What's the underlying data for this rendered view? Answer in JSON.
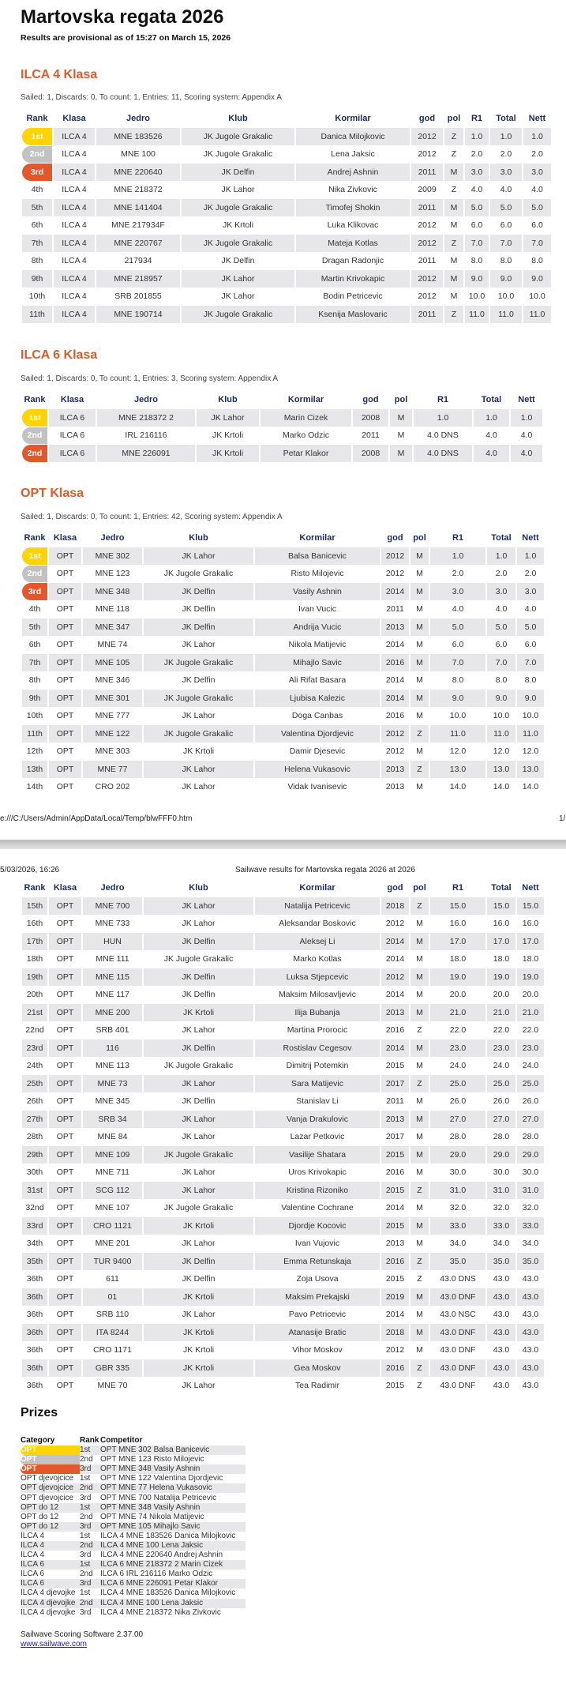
{
  "title": "Martovska regata 2026",
  "provisional": "Results are provisional as of 15:27 on March 15, 2026",
  "columns": [
    "Rank",
    "Klasa",
    "Jedro",
    "Klub",
    "Kormilar",
    "god",
    "pol",
    "R1",
    "Total",
    "Nett"
  ],
  "colors": {
    "accent": "#e05a2b",
    "header": "#1b2b5e",
    "gold": "#ffd400",
    "silver": "#c2c2c2",
    "bronze": "#e4572a",
    "row_shade": "#e7e7e9"
  },
  "ilca4": {
    "heading": "ILCA 4 Klasa",
    "sailed": "Sailed: 1, Discards: 0, To count: 1, Entries: 11, Scoring system: Appendix A",
    "rows": [
      [
        "1st",
        "ILCA 4",
        "MNE 183526",
        "JK Jugole Grakalic",
        "Danica Milojkovic",
        "2012",
        "Z",
        "1.0",
        "1.0",
        "1.0"
      ],
      [
        "2nd",
        "ILCA 4",
        "MNE 100",
        "JK Jugole Grakalic",
        "Lena Jaksic",
        "2012",
        "Z",
        "2.0",
        "2.0",
        "2.0"
      ],
      [
        "3rd",
        "ILCA 4",
        "MNE 220640",
        "JK Delfin",
        "Andrej Ashnin",
        "2011",
        "M",
        "3.0",
        "3.0",
        "3.0"
      ],
      [
        "4th",
        "ILCA 4",
        "MNE 218372",
        "JK Lahor",
        "Nika Zivkovic",
        "2009",
        "Z",
        "4.0",
        "4.0",
        "4.0"
      ],
      [
        "5th",
        "ILCA 4",
        "MNE 141404",
        "JK Jugole Grakalic",
        "Timofej Shokin",
        "2011",
        "M",
        "5.0",
        "5.0",
        "5.0"
      ],
      [
        "6th",
        "ILCA 4",
        "MNE 217934F",
        "JK Krtoli",
        "Luka Klikovac",
        "2012",
        "M",
        "6.0",
        "6.0",
        "6.0"
      ],
      [
        "7th",
        "ILCA 4",
        "MNE 220767",
        "JK Jugole Grakalic",
        "Mateja Kotlas",
        "2012",
        "Z",
        "7.0",
        "7.0",
        "7.0"
      ],
      [
        "8th",
        "ILCA 4",
        "217934",
        "JK Delfin",
        "Dragan Radonjic",
        "2011",
        "M",
        "8.0",
        "8.0",
        "8.0"
      ],
      [
        "9th",
        "ILCA 4",
        "MNE 218957",
        "JK Lahor",
        "Martin Krivokapic",
        "2012",
        "M",
        "9.0",
        "9.0",
        "9.0"
      ],
      [
        "10th",
        "ILCA 4",
        "SRB 201855",
        "JK Lahor",
        "Bodin Petricevic",
        "2012",
        "M",
        "10.0",
        "10.0",
        "10.0"
      ],
      [
        "11th",
        "ILCA 4",
        "MNE 190714",
        "JK Jugole Grakalic",
        "Ksenija Maslovaric",
        "2011",
        "Z",
        "11.0",
        "11.0",
        "11.0"
      ]
    ]
  },
  "ilca6": {
    "heading": "ILCA 6 Klasa",
    "sailed": "Sailed: 1, Discards: 0, To count: 1, Entries: 3, Scoring system: Appendix A",
    "rows": [
      [
        "1st",
        "ILCA 6",
        "MNE 218372 2",
        "JK Lahor",
        "Marin Cizek",
        "2008",
        "M",
        "1.0",
        "1.0",
        "1.0"
      ],
      [
        "2nd",
        "ILCA 6",
        "IRL 216116",
        "JK Krtoli",
        "Marko Odzic",
        "2011",
        "M",
        "4.0 DNS",
        "4.0",
        "4.0"
      ],
      [
        "2nd",
        "ILCA 6",
        "MNE 226091",
        "JK Krtoli",
        "Petar Klakor",
        "2008",
        "M",
        "4.0 DNS",
        "4.0",
        "4.0"
      ]
    ]
  },
  "opt": {
    "heading": "OPT Klasa",
    "sailed": "Sailed: 1, Discards: 0, To count: 1, Entries: 42, Scoring system: Appendix A",
    "rows": [
      [
        "1st",
        "OPT",
        "MNE 302",
        "JK Lahor",
        "Balsa Banicevic",
        "2012",
        "M",
        "1.0",
        "1.0",
        "1.0"
      ],
      [
        "2nd",
        "OPT",
        "MNE 123",
        "JK Jugole Grakalic",
        "Risto Milojevic",
        "2012",
        "M",
        "2.0",
        "2.0",
        "2.0"
      ],
      [
        "3rd",
        "OPT",
        "MNE 348",
        "JK Delfin",
        "Vasily Ashnin",
        "2014",
        "M",
        "3.0",
        "3.0",
        "3.0"
      ],
      [
        "4th",
        "OPT",
        "MNE 118",
        "JK Delfin",
        "Ivan Vucic",
        "2011",
        "M",
        "4.0",
        "4.0",
        "4.0"
      ],
      [
        "5th",
        "OPT",
        "MNE 347",
        "JK Delfin",
        "Andrija Vucic",
        "2013",
        "M",
        "5.0",
        "5.0",
        "5.0"
      ],
      [
        "6th",
        "OPT",
        "MNE 74",
        "JK Lahor",
        "Nikola Matijevic",
        "2014",
        "M",
        "6.0",
        "6.0",
        "6.0"
      ],
      [
        "7th",
        "OPT",
        "MNE 105",
        "JK Jugole Grakalic",
        "Mihajlo Savic",
        "2016",
        "M",
        "7.0",
        "7.0",
        "7.0"
      ],
      [
        "8th",
        "OPT",
        "MNE 346",
        "JK Delfin",
        "Ali Rifat Basara",
        "2014",
        "M",
        "8.0",
        "8.0",
        "8.0"
      ],
      [
        "9th",
        "OPT",
        "MNE 301",
        "JK Jugole Grakalic",
        "Ljubisa Kalezic",
        "2014",
        "M",
        "9.0",
        "9.0",
        "9.0"
      ],
      [
        "10th",
        "OPT",
        "MNE 777",
        "JK Lahor",
        "Doga Canbas",
        "2016",
        "M",
        "10.0",
        "10.0",
        "10.0"
      ],
      [
        "11th",
        "OPT",
        "MNE 122",
        "JK Jugole Grakalic",
        "Valentina Djordjevic",
        "2012",
        "Z",
        "11.0",
        "11.0",
        "11.0"
      ],
      [
        "12th",
        "OPT",
        "MNE 303",
        "JK Krtoli",
        "Damir Djesevic",
        "2012",
        "M",
        "12.0",
        "12.0",
        "12.0"
      ],
      [
        "13th",
        "OPT",
        "MNE 77",
        "JK Lahor",
        "Helena Vukasovic",
        "2013",
        "Z",
        "13.0",
        "13.0",
        "13.0"
      ],
      [
        "14th",
        "OPT",
        "CRO 202",
        "JK Lahor",
        "Vidak Ivanisevic",
        "2013",
        "M",
        "14.0",
        "14.0",
        "14.0"
      ]
    ],
    "rows2": [
      [
        "15th",
        "OPT",
        "MNE 700",
        "JK Lahor",
        "Natalija Petricevic",
        "2018",
        "Z",
        "15.0",
        "15.0",
        "15.0"
      ],
      [
        "16th",
        "OPT",
        "MNE 733",
        "JK Lahor",
        "Aleksandar Boskovic",
        "2012",
        "M",
        "16.0",
        "16.0",
        "16.0"
      ],
      [
        "17th",
        "OPT",
        "HUN",
        "JK Delfin",
        "Aleksej Li",
        "2014",
        "M",
        "17.0",
        "17.0",
        "17.0"
      ],
      [
        "18th",
        "OPT",
        "MNE 111",
        "JK Jugole Grakalic",
        "Marko Kotlas",
        "2014",
        "M",
        "18.0",
        "18.0",
        "18.0"
      ],
      [
        "19th",
        "OPT",
        "MNE 115",
        "JK Delfin",
        "Luksa Stjepcevic",
        "2012",
        "M",
        "19.0",
        "19.0",
        "19.0"
      ],
      [
        "20th",
        "OPT",
        "MNE 117",
        "JK Delfin",
        "Maksim Milosavljevic",
        "2014",
        "M",
        "20.0",
        "20.0",
        "20.0"
      ],
      [
        "21st",
        "OPT",
        "MNE 200",
        "JK Krtoli",
        "Ilija Bubanja",
        "2013",
        "M",
        "21.0",
        "21.0",
        "21.0"
      ],
      [
        "22nd",
        "OPT",
        "SRB 401",
        "JK Lahor",
        "Martina Prorocic",
        "2016",
        "Z",
        "22.0",
        "22.0",
        "22.0"
      ],
      [
        "23rd",
        "OPT",
        "116",
        "JK Delfin",
        "Rostislav Cegesov",
        "2014",
        "M",
        "23.0",
        "23.0",
        "23.0"
      ],
      [
        "24th",
        "OPT",
        "MNE 113",
        "JK Jugole Grakalic",
        "Dimitrij Potemkin",
        "2015",
        "M",
        "24.0",
        "24.0",
        "24.0"
      ],
      [
        "25th",
        "OPT",
        "MNE 73",
        "JK Lahor",
        "Sara Matijevic",
        "2017",
        "Z",
        "25.0",
        "25.0",
        "25.0"
      ],
      [
        "26th",
        "OPT",
        "MNE 345",
        "JK Delfin",
        "Stanislav Li",
        "2011",
        "M",
        "26.0",
        "26.0",
        "26.0"
      ],
      [
        "27th",
        "OPT",
        "SRB 34",
        "JK Lahor",
        "Vanja Drakulovic",
        "2013",
        "M",
        "27.0",
        "27.0",
        "27.0"
      ],
      [
        "28th",
        "OPT",
        "MNE 84",
        "JK Lahor",
        "Lazar Petkovic",
        "2017",
        "M",
        "28.0",
        "28.0",
        "28.0"
      ],
      [
        "29th",
        "OPT",
        "MNE 109",
        "JK Jugole Grakalic",
        "Vasilije Shatara",
        "2015",
        "M",
        "29.0",
        "29.0",
        "29.0"
      ],
      [
        "30th",
        "OPT",
        "MNE 711",
        "JK Lahor",
        "Uros Krivokapic",
        "2016",
        "M",
        "30.0",
        "30.0",
        "30.0"
      ],
      [
        "31st",
        "OPT",
        "SCG 112",
        "JK Lahor",
        "Kristina Rizoniko",
        "2015",
        "Z",
        "31.0",
        "31.0",
        "31.0"
      ],
      [
        "32nd",
        "OPT",
        "MNE 107",
        "JK Jugole Grakalic",
        "Valentine Cochrane",
        "2014",
        "M",
        "32.0",
        "32.0",
        "32.0"
      ],
      [
        "33rd",
        "OPT",
        "CRO 1121",
        "JK Krtoli",
        "Djordje Kocovic",
        "2015",
        "M",
        "33.0",
        "33.0",
        "33.0"
      ],
      [
        "34th",
        "OPT",
        "MNE 201",
        "JK Lahor",
        "Ivan Vujovic",
        "2013",
        "M",
        "34.0",
        "34.0",
        "34.0"
      ],
      [
        "35th",
        "OPT",
        "TUR 9400",
        "JK Delfin",
        "Emma Retunskaja",
        "2016",
        "Z",
        "35.0",
        "35.0",
        "35.0"
      ],
      [
        "36th",
        "OPT",
        "611",
        "JK Delfin",
        "Zoja Usova",
        "2015",
        "Z",
        "43.0 DNS",
        "43.0",
        "43.0"
      ],
      [
        "36th",
        "OPT",
        "01",
        "JK Krtoli",
        "Maksim Prekajski",
        "2019",
        "M",
        "43.0 DNF",
        "43.0",
        "43.0"
      ],
      [
        "36th",
        "OPT",
        "SRB 110",
        "JK Lahor",
        "Pavo Petricevic",
        "2014",
        "M",
        "43.0 NSC",
        "43.0",
        "43.0"
      ],
      [
        "36th",
        "OPT",
        "ITA 8244",
        "JK Krtoli",
        "Atanasije Bratic",
        "2018",
        "M",
        "43.0 DNF",
        "43.0",
        "43.0"
      ],
      [
        "36th",
        "OPT",
        "CRO 1171",
        "JK Krtoli",
        "Vihor Moskov",
        "2012",
        "M",
        "43.0 DNF",
        "43.0",
        "43.0"
      ],
      [
        "36th",
        "OPT",
        "GBR 335",
        "JK Krtoli",
        "Gea Moskov",
        "2016",
        "Z",
        "43.0 DNF",
        "43.0",
        "43.0"
      ],
      [
        "36th",
        "OPT",
        "MNE 70",
        "JK Lahor",
        "Tea Radimir",
        "2015",
        "Z",
        "43.0 DNF",
        "43.0",
        "43.0"
      ]
    ]
  },
  "print": {
    "url": "e:///C:/Users/Admin/AppData/Local/Temp/blwFFF0.htm",
    "page": "1/",
    "date": "5/03/2026, 16:26",
    "doc_title": "Sailwave results for Martovska regata 2026 at 2026"
  },
  "prizes": {
    "heading": "Prizes",
    "columns": [
      "Category",
      "Rank",
      "Competitor"
    ],
    "rows": [
      [
        "OPT",
        "1st",
        "OPT MNE 302 Balsa Banicevic"
      ],
      [
        "OPT",
        "2nd",
        "OPT MNE 123 Risto Milojevic"
      ],
      [
        "OPT",
        "3rd",
        "OPT MNE 348 Vasily Ashnin"
      ],
      [
        "OPT djevojcice",
        "1st",
        "OPT MNE 122 Valentina Djordjevic"
      ],
      [
        "OPT djevojcice",
        "2nd",
        "OPT MNE 77 Helena Vukasovic"
      ],
      [
        "OPT djevojcice",
        "3rd",
        "OPT MNE 700 Natalija Petricevic"
      ],
      [
        "OPT do 12",
        "1st",
        "OPT MNE 348 Vasily Ashnin"
      ],
      [
        "OPT do 12",
        "2nd",
        "OPT MNE 74 Nikola Matijevic"
      ],
      [
        "OPT do 12",
        "3rd",
        "OPT MNE 105 Mihajlo Savic"
      ],
      [
        "ILCA 4",
        "1st",
        "ILCA 4 MNE 183526 Danica Milojkovic"
      ],
      [
        "ILCA 4",
        "2nd",
        "ILCA 4 MNE 100 Lena Jaksic"
      ],
      [
        "ILCA 4",
        "3rd",
        "ILCA 4 MNE 220640 Andrej Ashnin"
      ],
      [
        "ILCA 6",
        "1st",
        "ILCA 6 MNE 218372 2 Marin Cizek"
      ],
      [
        "ILCA 6",
        "2nd",
        "ILCA 6 IRL 216116 Marko Odzic"
      ],
      [
        "ILCA 6",
        "3rd",
        "ILCA 6 MNE 226091 Petar Klakor"
      ],
      [
        "ILCA 4 djevojke",
        "1st",
        "ILCA 4 MNE 183526 Danica Milojkovic"
      ],
      [
        "ILCA 4 djevojke",
        "2nd",
        "ILCA 4 MNE 100 Lena Jaksic"
      ],
      [
        "ILCA 4 djevojke",
        "3rd",
        "ILCA 4 MNE 218372 Nika Zivkovic"
      ]
    ]
  },
  "footer": {
    "software": "Sailwave Scoring Software 2.37.00",
    "link": "www.sailwave.com"
  }
}
